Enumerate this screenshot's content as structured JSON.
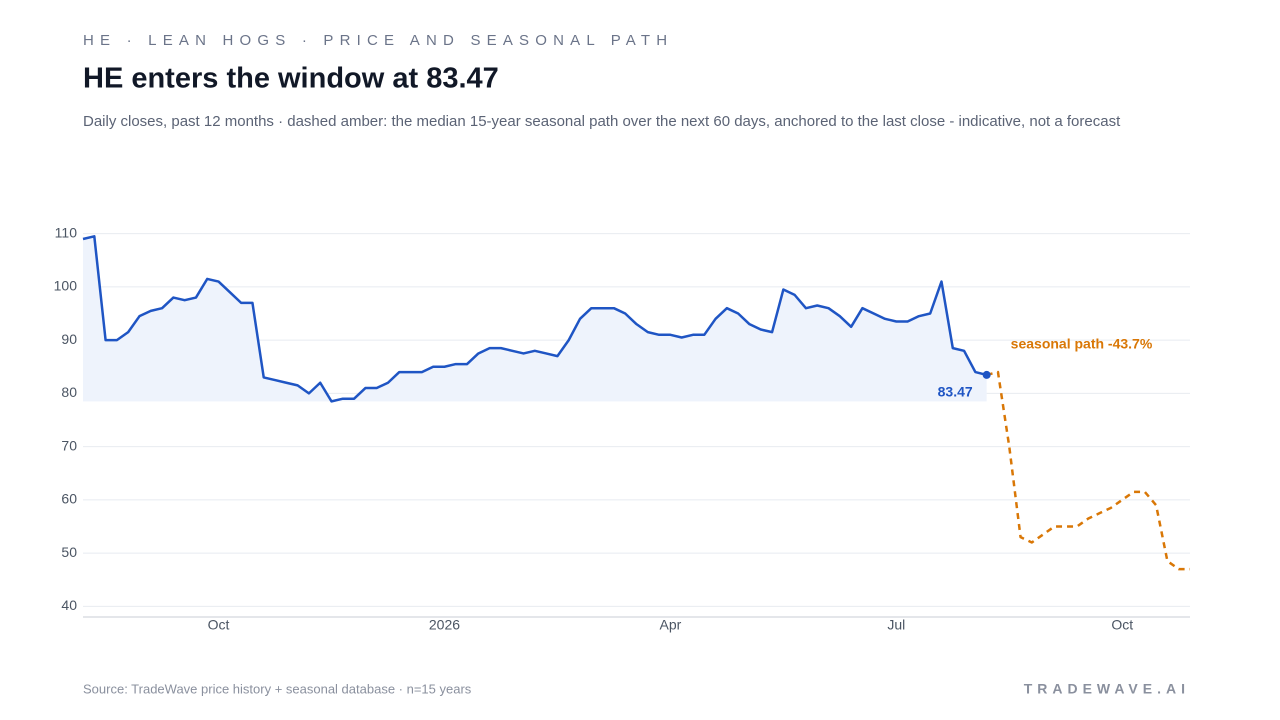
{
  "kicker": "HE · LEAN HOGS · PRICE AND SEASONAL PATH",
  "source": "Source: TradeWave price history + seasonal database · n=15 years",
  "brand": "TRADEWAVE.AI",
  "chart_data": {
    "type": "line",
    "title": "HE enters the window at 83.47",
    "subtitle": "Daily closes, past 12 months · dashed amber: the median 15-year seasonal path over the next 60 days, anchored to the last close - indicative, not a forecast",
    "annotation": "seasonal path -43.7%",
    "categories": [
      null,
      null,
      null,
      null,
      null,
      null,
      null,
      null,
      null,
      null,
      null,
      null,
      "Oct",
      null,
      null,
      null,
      null,
      null,
      null,
      null,
      null,
      null,
      null,
      null,
      null,
      null,
      null,
      null,
      null,
      null,
      null,
      null,
      "2026",
      null,
      null,
      null,
      null,
      null,
      null,
      null,
      null,
      null,
      null,
      null,
      null,
      null,
      null,
      null,
      null,
      null,
      null,
      null,
      "Apr",
      null,
      null,
      null,
      null,
      null,
      null,
      null,
      null,
      null,
      null,
      null,
      null,
      null,
      null,
      null,
      null,
      null,
      null,
      null,
      "Jul",
      null,
      null,
      null,
      null,
      null,
      null,
      null,
      null,
      null,
      null,
      null,
      null,
      null,
      null,
      null,
      null,
      null,
      null,
      null,
      "Oct",
      null,
      null,
      null,
      null,
      null,
      null
    ],
    "series": [
      {
        "name": "Daily close",
        "color": "#1f55c4",
        "fill": "#eef3fc",
        "values": [
          109,
          109.5,
          90,
          90,
          91.5,
          94.5,
          95.5,
          96,
          98,
          97.5,
          98,
          101.5,
          101,
          99,
          97,
          97,
          83,
          82.5,
          82,
          81.5,
          80,
          82,
          78.5,
          79,
          79,
          81,
          81,
          82,
          84,
          84,
          84,
          85,
          85,
          85.5,
          85.5,
          87.5,
          88.5,
          88.5,
          88,
          87.5,
          88,
          87.5,
          87,
          90,
          94,
          96,
          96,
          96,
          95,
          93,
          91.5,
          91,
          91,
          90.5,
          91,
          91,
          94,
          96,
          95,
          93,
          92,
          91.5,
          99.5,
          98.5,
          96,
          96.5,
          96,
          94.5,
          92.5,
          96,
          95,
          94,
          93.5,
          93.5,
          94.5,
          95,
          101,
          88.5,
          88,
          84,
          83.47,
          null,
          null,
          null,
          null,
          null,
          null,
          null,
          null,
          null,
          null,
          null,
          null,
          null,
          null,
          null,
          null,
          null,
          null
        ]
      },
      {
        "name": "Seasonal path",
        "color": "#d97706",
        "dashed": true,
        "values": [
          null,
          null,
          null,
          null,
          null,
          null,
          null,
          null,
          null,
          null,
          null,
          null,
          null,
          null,
          null,
          null,
          null,
          null,
          null,
          null,
          null,
          null,
          null,
          null,
          null,
          null,
          null,
          null,
          null,
          null,
          null,
          null,
          null,
          null,
          null,
          null,
          null,
          null,
          null,
          null,
          null,
          null,
          null,
          null,
          null,
          null,
          null,
          null,
          null,
          null,
          null,
          null,
          null,
          null,
          null,
          null,
          null,
          null,
          null,
          null,
          null,
          null,
          null,
          null,
          null,
          null,
          null,
          null,
          null,
          null,
          null,
          null,
          null,
          null,
          null,
          null,
          null,
          null,
          null,
          null,
          83.47,
          84,
          70,
          53,
          52,
          53.5,
          55,
          55,
          55,
          56.5,
          57.5,
          58.5,
          60,
          61.5,
          61.5,
          59,
          48.5,
          47,
          47
        ]
      }
    ],
    "ylim": [
      38,
      112
    ],
    "yticks": [
      40,
      50,
      60,
      70,
      80,
      90,
      100,
      110
    ],
    "grid": true
  }
}
